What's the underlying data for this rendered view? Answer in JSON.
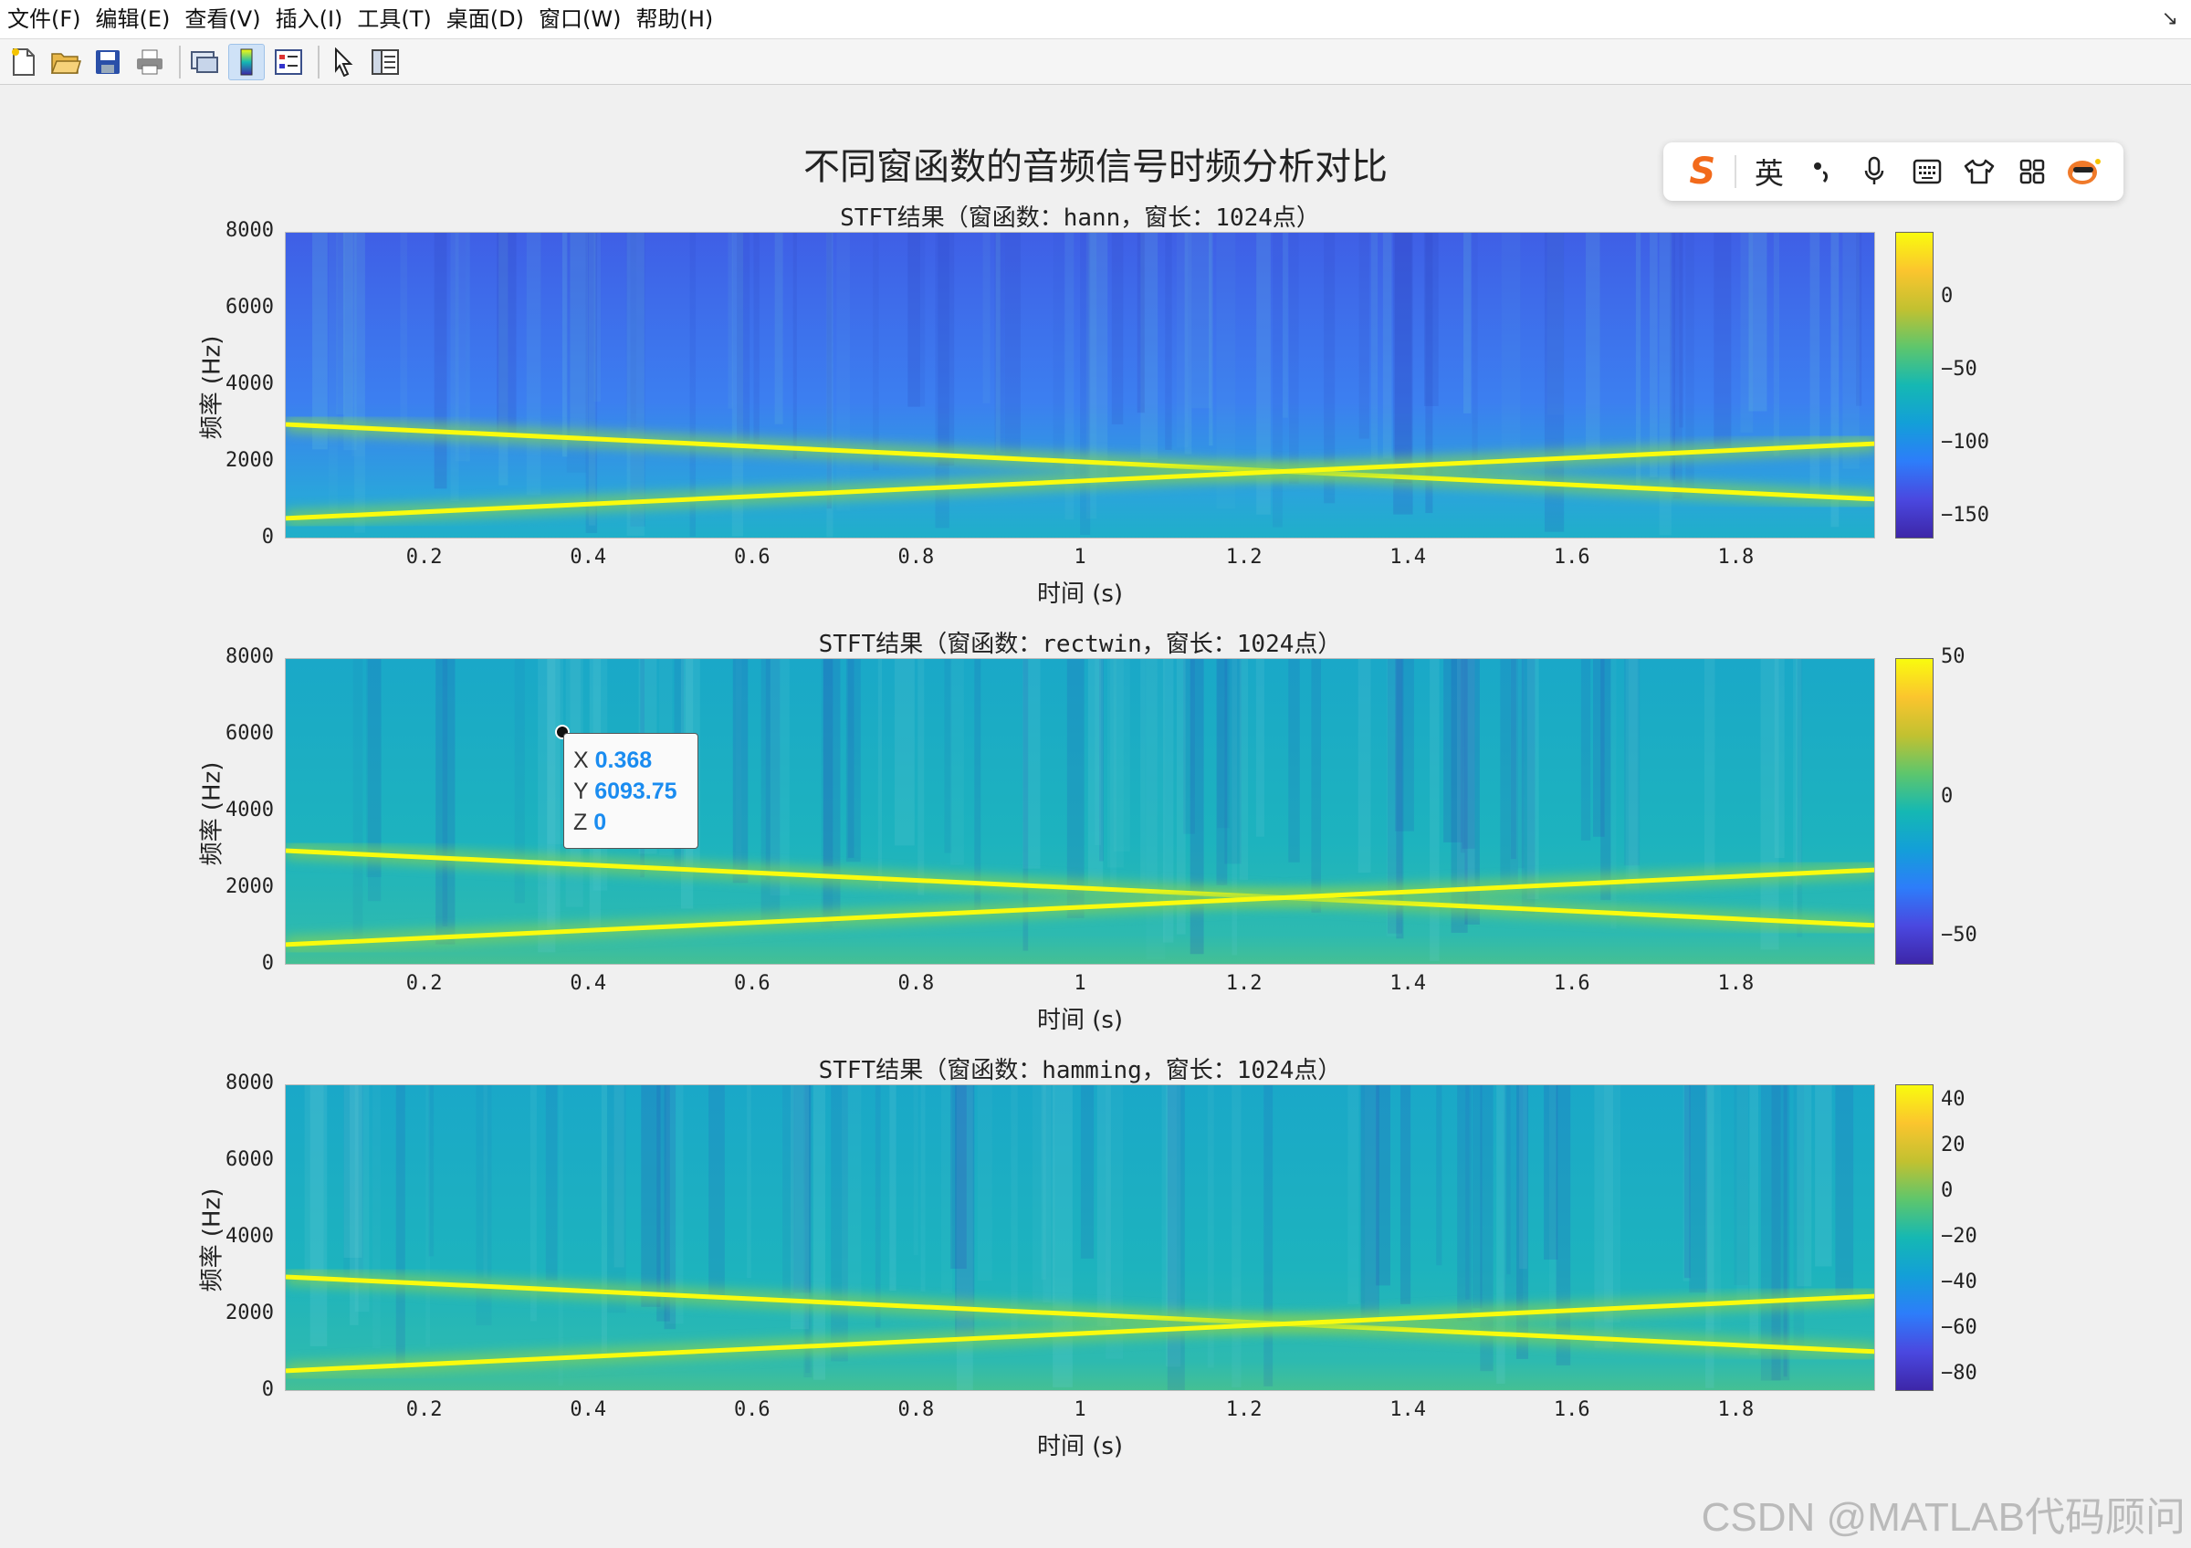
{
  "menubar": {
    "items": [
      "文件(F)",
      "编辑(E)",
      "查看(V)",
      "插入(I)",
      "工具(T)",
      "桌面(D)",
      "窗口(W)",
      "帮助(H)"
    ],
    "corner_icon": "dock-arrow-icon"
  },
  "toolbar": {
    "buttons": [
      "new-figure-icon",
      "open-file-icon",
      "save-icon",
      "print-icon",
      "link-plot-icon",
      "insert-colorbar-icon",
      "insert-legend-icon",
      "pointer-icon",
      "property-inspector-icon"
    ]
  },
  "figure": {
    "title": "不同窗函数的音频信号时频分析对比"
  },
  "ime": {
    "logo": "S",
    "lang": "英",
    "icons": [
      "punctuation-icon",
      "microphone-icon",
      "keyboard-icon",
      "skin-icon",
      "apps-grid-icon",
      "mascot-icon"
    ]
  },
  "datatip": {
    "x_label": "X",
    "x_value": "0.368",
    "y_label": "Y",
    "y_value": "6093.75",
    "z_label": "Z",
    "z_value": "0"
  },
  "watermark": "CSDN @MATLAB代码顾问",
  "colors": {
    "chirp_line": "#f9fb0e",
    "parula_low": "#3d26a8",
    "parula_high": "#f9fb0e",
    "datatip_value": "#1a8cf0"
  },
  "chart_data": [
    {
      "type": "heatmap",
      "title": "STFT结果（窗函数：hann，窗长：1024点）",
      "xlabel": "时间 (s)",
      "ylabel": "频率 (Hz)",
      "xticks": [
        "0.2",
        "0.4",
        "0.6",
        "0.8",
        "1",
        "1.2",
        "1.4",
        "1.6",
        "1.8"
      ],
      "yticks": [
        "0",
        "2000",
        "4000",
        "6000",
        "8000"
      ],
      "xlim": [
        0.03,
        1.97
      ],
      "ylim": [
        0,
        8000
      ],
      "colorbar_ticks": [
        "0",
        "-50",
        "-100",
        "-150"
      ],
      "colorbar_values": [
        0,
        -50,
        -100,
        -150
      ],
      "clim": [
        -165,
        45
      ],
      "lines": [
        {
          "x": [
            0.03,
            1.97
          ],
          "y": [
            3000,
            1050
          ]
        },
        {
          "x": [
            0.03,
            1.97
          ],
          "y": [
            550,
            2500
          ]
        }
      ]
    },
    {
      "type": "heatmap",
      "title": "STFT结果（窗函数：rectwin，窗长：1024点）",
      "xlabel": "时间 (s)",
      "ylabel": "频率 (Hz)",
      "xticks": [
        "0.2",
        "0.4",
        "0.6",
        "0.8",
        "1",
        "1.2",
        "1.4",
        "1.6",
        "1.8"
      ],
      "yticks": [
        "0",
        "2000",
        "4000",
        "6000",
        "8000"
      ],
      "xlim": [
        0.03,
        1.97
      ],
      "ylim": [
        0,
        8000
      ],
      "colorbar_ticks": [
        "50",
        "0",
        "-50"
      ],
      "colorbar_values": [
        50,
        0,
        -50
      ],
      "clim": [
        -60,
        50
      ],
      "lines": [
        {
          "x": [
            0.03,
            1.97
          ],
          "y": [
            3000,
            1050
          ]
        },
        {
          "x": [
            0.03,
            1.97
          ],
          "y": [
            550,
            2500
          ]
        }
      ]
    },
    {
      "type": "heatmap",
      "title": "STFT结果（窗函数：hamming，窗长：1024点）",
      "xlabel": "时间 (s)",
      "ylabel": "频率 (Hz)",
      "xticks": [
        "0.2",
        "0.4",
        "0.6",
        "0.8",
        "1",
        "1.2",
        "1.4",
        "1.6",
        "1.8"
      ],
      "yticks": [
        "0",
        "2000",
        "4000",
        "6000",
        "8000"
      ],
      "xlim": [
        0.03,
        1.97
      ],
      "ylim": [
        0,
        8000
      ],
      "colorbar_ticks": [
        "40",
        "20",
        "0",
        "-20",
        "-40",
        "-60",
        "-80"
      ],
      "colorbar_values": [
        40,
        20,
        0,
        -20,
        -40,
        -60,
        -80
      ],
      "clim": [
        -87,
        47
      ],
      "lines": [
        {
          "x": [
            0.03,
            1.97
          ],
          "y": [
            3000,
            1050
          ]
        },
        {
          "x": [
            0.03,
            1.97
          ],
          "y": [
            550,
            2500
          ]
        }
      ]
    }
  ]
}
